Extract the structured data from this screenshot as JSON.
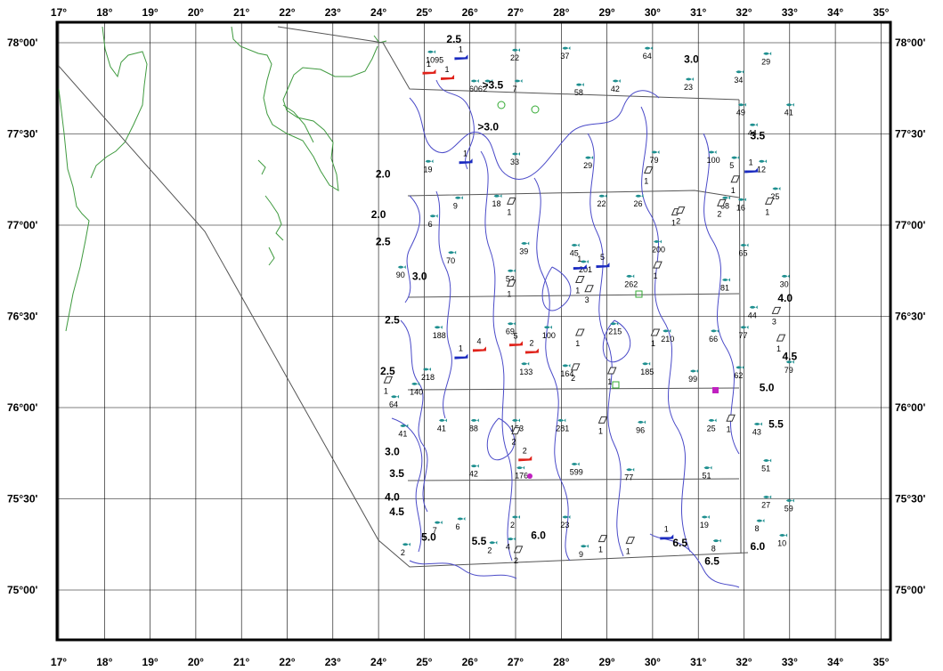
{
  "map": {
    "lon_ticks": [
      "17°",
      "18°",
      "19°",
      "20°",
      "21°",
      "22°",
      "23°",
      "24°",
      "25°",
      "26°",
      "27°",
      "28°",
      "29°",
      "30°",
      "31°",
      "32°",
      "33°",
      "34°",
      "35°"
    ],
    "lat_ticks": [
      "78°00'",
      "77°30'",
      "77°00'",
      "76°30'",
      "76°00'",
      "75°30'",
      "75°00'"
    ],
    "colors": {
      "coast": "#3f9a3f",
      "isoline": "#4a4ac8",
      "grid": "#000000",
      "frame": "#000000",
      "fish_teal": "#1e8f8f",
      "vessel_red": "#e0221a",
      "vessel_blue": "#1a2ac0",
      "marker_magenta": "#c020c0",
      "marker_green": "#33aa33"
    },
    "isolines": [
      {
        "text": "2.5",
        "lon": 25.65,
        "lat": 78.0
      },
      {
        "text": "3.0",
        "lon": 30.85,
        "lat": 77.89
      },
      {
        "text": ">3.5",
        "lon": 26.5,
        "lat": 77.75
      },
      {
        "text": ">3.0",
        "lon": 26.4,
        "lat": 77.52
      },
      {
        "text": "3.5",
        "lon": 32.3,
        "lat": 77.47
      },
      {
        "text": "2.0",
        "lon": 24.1,
        "lat": 77.26
      },
      {
        "text": "2.0",
        "lon": 24.0,
        "lat": 77.04
      },
      {
        "text": "2.5",
        "lon": 24.1,
        "lat": 76.89
      },
      {
        "text": "3.0",
        "lon": 24.9,
        "lat": 76.7
      },
      {
        "text": "4.0",
        "lon": 32.9,
        "lat": 76.58
      },
      {
        "text": "2.5",
        "lon": 24.3,
        "lat": 76.46
      },
      {
        "text": "4.5",
        "lon": 33.0,
        "lat": 76.26
      },
      {
        "text": "2.5",
        "lon": 24.2,
        "lat": 76.18
      },
      {
        "text": "5.0",
        "lon": 32.5,
        "lat": 76.09
      },
      {
        "text": "5.5",
        "lon": 32.7,
        "lat": 75.89
      },
      {
        "text": "3.0",
        "lon": 24.3,
        "lat": 75.74
      },
      {
        "text": "3.5",
        "lon": 24.4,
        "lat": 75.62
      },
      {
        "text": "4.0",
        "lon": 24.3,
        "lat": 75.49
      },
      {
        "text": "4.5",
        "lon": 24.4,
        "lat": 75.41
      },
      {
        "text": "5.0",
        "lon": 25.1,
        "lat": 75.27
      },
      {
        "text": "5.5",
        "lon": 26.2,
        "lat": 75.25
      },
      {
        "text": "6.0",
        "lon": 27.5,
        "lat": 75.28
      },
      {
        "text": "6.5",
        "lon": 30.6,
        "lat": 75.24
      },
      {
        "text": "6.5",
        "lon": 31.3,
        "lat": 75.14
      },
      {
        "text": "6.0",
        "lon": 32.3,
        "lat": 75.22
      }
    ],
    "fish_stations": [
      {
        "text": "1095",
        "lon": 25.15,
        "lat": 77.95
      },
      {
        "text": "22",
        "lon": 27.0,
        "lat": 77.96
      },
      {
        "text": "37",
        "lon": 28.1,
        "lat": 77.97
      },
      {
        "text": "64",
        "lon": 29.9,
        "lat": 77.97
      },
      {
        "text": "29",
        "lon": 32.5,
        "lat": 77.94
      },
      {
        "text": "606",
        "lon": 26.1,
        "lat": 77.79
      },
      {
        "text": "2",
        "lon": 26.4,
        "lat": 77.79
      },
      {
        "text": "7",
        "lon": 27.05,
        "lat": 77.79
      },
      {
        "text": "58",
        "lon": 28.4,
        "lat": 77.77
      },
      {
        "text": "42",
        "lon": 29.2,
        "lat": 77.79
      },
      {
        "text": "23",
        "lon": 30.8,
        "lat": 77.8
      },
      {
        "text": "34",
        "lon": 31.9,
        "lat": 77.84
      },
      {
        "text": "41",
        "lon": 33.0,
        "lat": 77.66
      },
      {
        "text": "49",
        "lon": 31.95,
        "lat": 77.66
      },
      {
        "text": "44",
        "lon": 32.2,
        "lat": 77.55
      },
      {
        "text": "79",
        "lon": 30.05,
        "lat": 77.4
      },
      {
        "text": "100",
        "lon": 31.3,
        "lat": 77.4
      },
      {
        "text": "5",
        "lon": 31.8,
        "lat": 77.37
      },
      {
        "text": "12",
        "lon": 32.4,
        "lat": 77.35
      },
      {
        "text": "19",
        "lon": 25.1,
        "lat": 77.35
      },
      {
        "text": "33",
        "lon": 27.0,
        "lat": 77.39
      },
      {
        "text": "29",
        "lon": 28.6,
        "lat": 77.37
      },
      {
        "text": "9",
        "lon": 25.75,
        "lat": 77.15
      },
      {
        "text": "18",
        "lon": 26.6,
        "lat": 77.16
      },
      {
        "text": "22",
        "lon": 28.9,
        "lat": 77.16
      },
      {
        "text": "26",
        "lon": 29.7,
        "lat": 77.16
      },
      {
        "text": "68",
        "lon": 31.6,
        "lat": 77.15
      },
      {
        "text": "16",
        "lon": 31.95,
        "lat": 77.14
      },
      {
        "text": "25",
        "lon": 32.7,
        "lat": 77.2
      },
      {
        "text": "6",
        "lon": 25.2,
        "lat": 77.05
      },
      {
        "text": "70",
        "lon": 25.6,
        "lat": 76.85
      },
      {
        "text": "39",
        "lon": 27.2,
        "lat": 76.9
      },
      {
        "text": "45",
        "lon": 28.3,
        "lat": 76.89
      },
      {
        "text": "200",
        "lon": 30.1,
        "lat": 76.91
      },
      {
        "text": "65",
        "lon": 32.0,
        "lat": 76.89
      },
      {
        "text": "90",
        "lon": 24.5,
        "lat": 76.77
      },
      {
        "text": "53",
        "lon": 26.9,
        "lat": 76.75
      },
      {
        "text": "201",
        "lon": 28.5,
        "lat": 76.8
      },
      {
        "text": "262",
        "lon": 29.5,
        "lat": 76.72
      },
      {
        "text": "81",
        "lon": 31.6,
        "lat": 76.7
      },
      {
        "text": "30",
        "lon": 32.9,
        "lat": 76.72
      },
      {
        "text": "44",
        "lon": 32.2,
        "lat": 76.55
      },
      {
        "text": "188",
        "lon": 25.3,
        "lat": 76.44
      },
      {
        "text": "69",
        "lon": 26.9,
        "lat": 76.46
      },
      {
        "text": "100",
        "lon": 27.7,
        "lat": 76.44
      },
      {
        "text": "215",
        "lon": 29.15,
        "lat": 76.46
      },
      {
        "text": "210",
        "lon": 30.3,
        "lat": 76.42
      },
      {
        "text": "66",
        "lon": 31.35,
        "lat": 76.42
      },
      {
        "text": "77",
        "lon": 32.0,
        "lat": 76.44
      },
      {
        "text": "218",
        "lon": 25.05,
        "lat": 76.21
      },
      {
        "text": "133",
        "lon": 27.2,
        "lat": 76.24
      },
      {
        "text": "164",
        "lon": 28.1,
        "lat": 76.23
      },
      {
        "text": "185",
        "lon": 29.85,
        "lat": 76.24
      },
      {
        "text": "99",
        "lon": 30.9,
        "lat": 76.2
      },
      {
        "text": "62",
        "lon": 31.9,
        "lat": 76.22
      },
      {
        "text": "79",
        "lon": 33.0,
        "lat": 76.25
      },
      {
        "text": "140",
        "lon": 24.8,
        "lat": 76.13
      },
      {
        "text": "64",
        "lon": 24.35,
        "lat": 76.06
      },
      {
        "text": "41",
        "lon": 24.55,
        "lat": 75.9
      },
      {
        "text": "41",
        "lon": 25.4,
        "lat": 75.93
      },
      {
        "text": "88",
        "lon": 26.1,
        "lat": 75.93
      },
      {
        "text": "153",
        "lon": 27.0,
        "lat": 75.93
      },
      {
        "text": "281",
        "lon": 28.0,
        "lat": 75.93
      },
      {
        "text": "96",
        "lon": 29.75,
        "lat": 75.92
      },
      {
        "text": "25",
        "lon": 31.3,
        "lat": 75.93
      },
      {
        "text": "43",
        "lon": 32.3,
        "lat": 75.91
      },
      {
        "text": "42",
        "lon": 26.1,
        "lat": 75.68
      },
      {
        "text": "176",
        "lon": 27.1,
        "lat": 75.67
      },
      {
        "text": "599",
        "lon": 28.3,
        "lat": 75.69
      },
      {
        "text": "77",
        "lon": 29.5,
        "lat": 75.66
      },
      {
        "text": "51",
        "lon": 31.2,
        "lat": 75.67
      },
      {
        "text": "51",
        "lon": 32.5,
        "lat": 75.71
      },
      {
        "text": "27",
        "lon": 32.5,
        "lat": 75.51
      },
      {
        "text": "59",
        "lon": 33.0,
        "lat": 75.49
      },
      {
        "text": "7",
        "lon": 25.3,
        "lat": 75.37
      },
      {
        "text": "6",
        "lon": 25.8,
        "lat": 75.39
      },
      {
        "text": "2",
        "lon": 27.0,
        "lat": 75.4
      },
      {
        "text": "23",
        "lon": 28.1,
        "lat": 75.4
      },
      {
        "text": "19",
        "lon": 31.15,
        "lat": 75.4
      },
      {
        "text": "8",
        "lon": 32.35,
        "lat": 75.38
      },
      {
        "text": "10",
        "lon": 32.85,
        "lat": 75.3
      },
      {
        "text": "2",
        "lon": 24.6,
        "lat": 75.25
      },
      {
        "text": "2",
        "lon": 26.5,
        "lat": 75.26
      },
      {
        "text": "4",
        "lon": 26.9,
        "lat": 75.28
      },
      {
        "text": "9",
        "lon": 28.5,
        "lat": 75.24
      },
      {
        "text": "8",
        "lon": 31.4,
        "lat": 75.27
      }
    ],
    "vessels": [
      {
        "text": "1",
        "lon": 25.8,
        "lat": 77.92,
        "color": "#1a2ac0"
      },
      {
        "text": "1",
        "lon": 25.1,
        "lat": 77.84,
        "color": "#e0221a"
      },
      {
        "text": "1",
        "lon": 25.5,
        "lat": 77.81,
        "color": "#e0221a"
      },
      {
        "text": "1",
        "lon": 25.9,
        "lat": 77.35,
        "color": "#1a2ac0"
      },
      {
        "text": "1",
        "lon": 32.15,
        "lat": 77.3,
        "color": "#1a2ac0"
      },
      {
        "text": "1",
        "lon": 28.4,
        "lat": 76.77,
        "color": "#1a2ac0"
      },
      {
        "text": "5",
        "lon": 28.9,
        "lat": 76.78,
        "color": "#1a2ac0"
      },
      {
        "text": "4",
        "lon": 26.2,
        "lat": 76.32,
        "color": "#e0221a"
      },
      {
        "text": "5",
        "lon": 27.0,
        "lat": 76.35,
        "color": "#e0221a"
      },
      {
        "text": "2",
        "lon": 27.35,
        "lat": 76.31,
        "color": "#e0221a"
      },
      {
        "text": "1",
        "lon": 25.8,
        "lat": 76.28,
        "color": "#1a2ac0"
      },
      {
        "text": "2",
        "lon": 27.2,
        "lat": 75.72,
        "color": "#e0221a"
      },
      {
        "text": "1",
        "lon": 30.3,
        "lat": 75.29,
        "color": "#1a2ac0"
      }
    ],
    "trawlers": [
      {
        "text": "1",
        "lon": 26.9,
        "lat": 77.13
      },
      {
        "text": "1",
        "lon": 29.9,
        "lat": 77.3
      },
      {
        "text": "1",
        "lon": 31.8,
        "lat": 77.25
      },
      {
        "text": "1",
        "lon": 30.5,
        "lat": 77.07
      },
      {
        "text": "2",
        "lon": 30.6,
        "lat": 77.08
      },
      {
        "text": "2",
        "lon": 31.5,
        "lat": 77.12
      },
      {
        "text": "1",
        "lon": 32.55,
        "lat": 77.13
      },
      {
        "text": "1",
        "lon": 26.9,
        "lat": 76.68
      },
      {
        "text": "1",
        "lon": 28.4,
        "lat": 76.7
      },
      {
        "text": "3",
        "lon": 28.6,
        "lat": 76.65
      },
      {
        "text": "1",
        "lon": 30.1,
        "lat": 76.78
      },
      {
        "text": "3",
        "lon": 32.7,
        "lat": 76.53
      },
      {
        "text": "1",
        "lon": 28.4,
        "lat": 76.41
      },
      {
        "text": "1",
        "lon": 30.05,
        "lat": 76.41
      },
      {
        "text": "1",
        "lon": 32.8,
        "lat": 76.38
      },
      {
        "text": "2",
        "lon": 28.3,
        "lat": 76.22
      },
      {
        "text": "1",
        "lon": 29.1,
        "lat": 76.2
      },
      {
        "text": "1",
        "lon": 24.2,
        "lat": 76.15
      },
      {
        "text": "1",
        "lon": 28.9,
        "lat": 75.93
      },
      {
        "text": "2",
        "lon": 27.0,
        "lat": 75.87
      },
      {
        "text": "1",
        "lon": 31.7,
        "lat": 75.94
      },
      {
        "text": "1",
        "lon": 28.9,
        "lat": 75.28
      },
      {
        "text": "1",
        "lon": 29.5,
        "lat": 75.27
      },
      {
        "text": "2",
        "lon": 27.05,
        "lat": 75.22
      }
    ]
  }
}
